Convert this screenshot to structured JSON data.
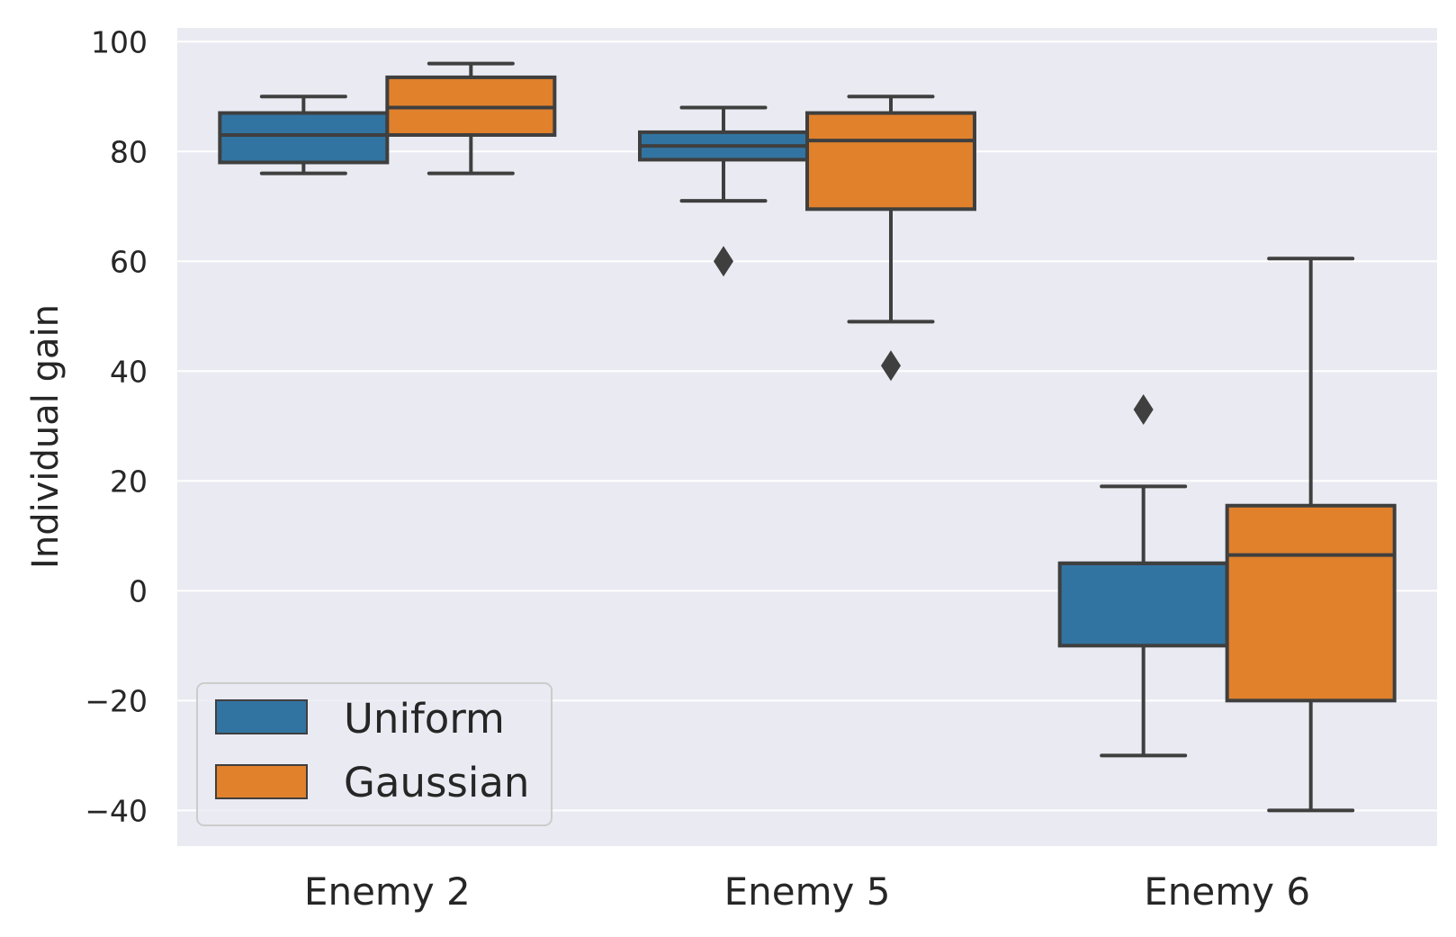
{
  "chart_data": {
    "type": "box",
    "title": "",
    "xlabel": "",
    "ylabel": "Individual gain",
    "ylim": [
      -46.5,
      102.5
    ],
    "yticks": [
      100,
      80,
      60,
      40,
      20,
      0,
      -20,
      -40
    ],
    "ytick_labels": [
      "100",
      "80",
      "60",
      "40",
      "20",
      "0",
      "−20",
      "−40"
    ],
    "categories": [
      "Enemy 2",
      "Enemy 5",
      "Enemy 6"
    ],
    "grid": true,
    "legend_position": "lower-left",
    "series": [
      {
        "name": "Uniform",
        "color": "#3274a1",
        "boxes": [
          {
            "whisker_low": 76,
            "q1": 78,
            "median": 83,
            "q3": 87,
            "whisker_high": 90,
            "outliers": []
          },
          {
            "whisker_low": 71,
            "q1": 78.5,
            "median": 81,
            "q3": 83.5,
            "whisker_high": 88,
            "outliers": [
              60
            ]
          },
          {
            "whisker_low": -30,
            "q1": -10,
            "median": 5,
            "q3": 5,
            "whisker_high": 19,
            "outliers": [
              33
            ]
          }
        ]
      },
      {
        "name": "Gaussian",
        "color": "#e1812c",
        "boxes": [
          {
            "whisker_low": 76,
            "q1": 83,
            "median": 88,
            "q3": 93.5,
            "whisker_high": 96,
            "outliers": []
          },
          {
            "whisker_low": 49,
            "q1": 69.5,
            "median": 82,
            "q3": 87,
            "whisker_high": 90,
            "outliers": [
              41
            ]
          },
          {
            "whisker_low": -40,
            "q1": -20,
            "median": 6.5,
            "q3": 15.5,
            "whisker_high": 60.5,
            "outliers": []
          }
        ]
      }
    ],
    "style": {
      "plot_background": "#eaeaf2",
      "grid_color": "#ffffff",
      "line_color": "#3f3f3f"
    }
  }
}
